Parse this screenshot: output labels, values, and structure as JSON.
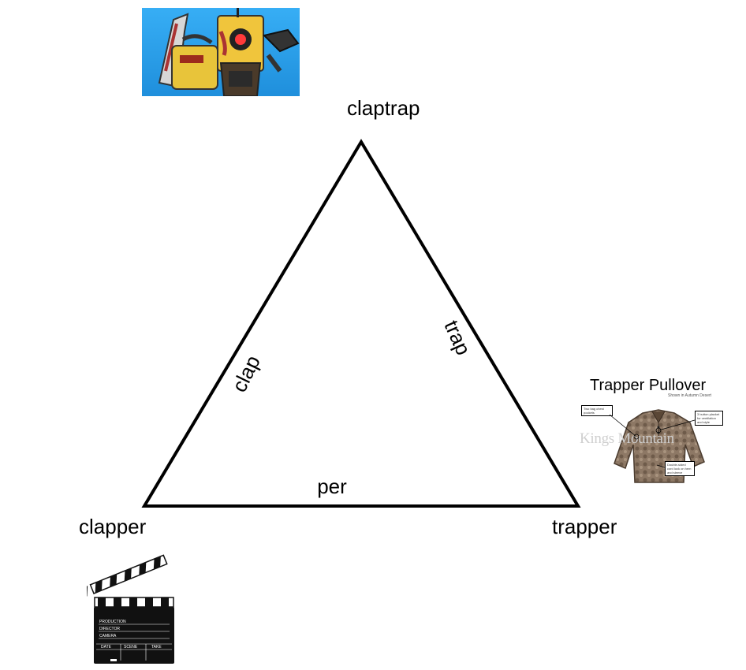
{
  "nodes": {
    "top": "claptrap",
    "left": "clapper",
    "right": "trapper"
  },
  "edges": {
    "left": "clap",
    "right": "trap",
    "bottom": "per"
  },
  "pictures": {
    "claptrap_icon": "robot-with-chainsaw-icon",
    "pullover": {
      "title": "Trapper Pullover",
      "subtitle": "Shown in Autumn Desert",
      "watermark": "Kings Mountain",
      "callouts": [
        "Two bag chest pockets",
        "3 button placket for ventilation and style",
        "Double-sided cord lock on hem and sleeve"
      ]
    },
    "clapperboard": {
      "lines": [
        "PRODUCTION",
        "DIRECTOR",
        "CAMERA"
      ],
      "columns": [
        "DATE",
        "SCENE",
        "TAKE"
      ]
    }
  },
  "colors": {
    "line": "#000000",
    "claptrap_bg": "#2a9be8"
  }
}
